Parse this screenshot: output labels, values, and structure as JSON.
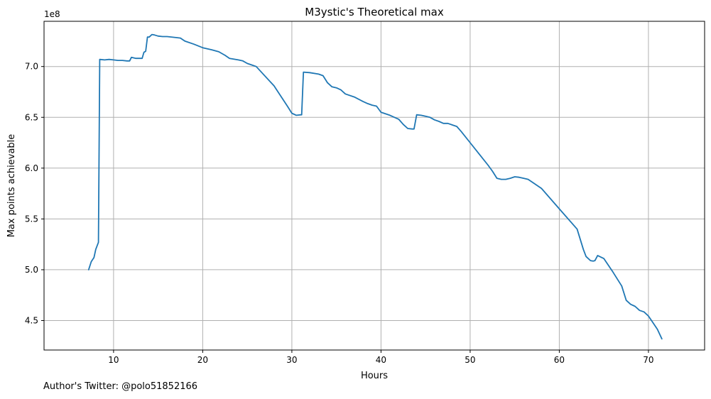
{
  "footer_text": "Author's Twitter: @polo51852166",
  "colors": {
    "line": "#1f77b4",
    "grid": "#b0b0b0",
    "axes": "#000000"
  },
  "chart_data": {
    "type": "line",
    "title": "M3ystic's Theoretical max",
    "xlabel": "Hours",
    "ylabel": "Max points achievable",
    "y_offset_label": "1e8",
    "grid": true,
    "xlim": [
      2.2,
      76.3
    ],
    "ylim": [
      421000000,
      744500000
    ],
    "x_ticks": [
      10,
      20,
      30,
      40,
      50,
      60,
      70
    ],
    "x_tick_labels": [
      "10",
      "20",
      "30",
      "40",
      "50",
      "60",
      "70"
    ],
    "y_ticks": [
      450000000,
      500000000,
      550000000,
      600000000,
      650000000,
      700000000
    ],
    "y_tick_labels": [
      "4.5",
      "5.0",
      "5.5",
      "6.0",
      "6.5",
      "7.0"
    ],
    "series": [
      {
        "x": [
          7.2,
          7.5,
          7.8,
          8.0,
          8.3,
          8.45,
          9.0,
          9.5,
          10.0,
          10.5,
          11.0,
          11.5,
          11.8,
          12.0,
          12.5,
          13.0,
          13.2,
          13.4,
          13.6,
          13.8,
          14.0,
          14.3,
          14.6,
          15.0,
          15.5,
          16.0,
          17.0,
          17.5,
          18.0,
          19.0,
          20.0,
          21.0,
          21.8,
          22.5,
          23.0,
          24.0,
          24.5,
          25.0,
          25.5,
          26.0,
          28.0,
          29.5,
          30.0,
          30.5,
          31.0,
          31.1,
          31.3,
          32.0,
          33.0,
          33.5,
          34.0,
          34.5,
          35.0,
          35.5,
          36.0,
          37.0,
          38.0,
          38.5,
          39.0,
          39.5,
          40.0,
          41.0,
          42.0,
          42.5,
          43.0,
          43.5,
          43.7,
          44.0,
          44.5,
          45.0,
          45.5,
          46.0,
          46.5,
          47.0,
          47.5,
          48.0,
          48.5,
          49.0,
          50.0,
          51.0,
          52.0,
          52.5,
          53.0,
          53.5,
          54.0,
          54.5,
          55.0,
          55.5,
          56.0,
          56.5,
          58.0,
          60.0,
          62.0,
          62.7,
          63.0,
          63.5,
          63.8,
          64.0,
          64.3,
          65.0,
          66.0,
          67.0,
          67.5,
          68.0,
          68.5,
          69.0,
          69.5,
          70.0,
          70.5,
          71.0,
          71.5
        ],
        "y": [
          500000000,
          508000000,
          512000000,
          520000000,
          527000000,
          707000000,
          706500000,
          707000000,
          706500000,
          706000000,
          706000000,
          705500000,
          705500000,
          709000000,
          708000000,
          708000000,
          708000000,
          714000000,
          715000000,
          729000000,
          729000000,
          731500000,
          731000000,
          730000000,
          729500000,
          729500000,
          728500000,
          728000000,
          725000000,
          722000000,
          718500000,
          716500000,
          714500000,
          711000000,
          708000000,
          706500000,
          705500000,
          703000000,
          701500000,
          700000000,
          681000000,
          661000000,
          654000000,
          652000000,
          652500000,
          652500000,
          694500000,
          694000000,
          692500000,
          691000000,
          684000000,
          680000000,
          679000000,
          677000000,
          673000000,
          670000000,
          665500000,
          663500000,
          662000000,
          661000000,
          655000000,
          652000000,
          648000000,
          643000000,
          639000000,
          638500000,
          638500000,
          652500000,
          652000000,
          651000000,
          650000000,
          647500000,
          646000000,
          644000000,
          644000000,
          642500000,
          641000000,
          636000000,
          625000000,
          614000000,
          603000000,
          597000000,
          590000000,
          589000000,
          589000000,
          590000000,
          591500000,
          591000000,
          590000000,
          589000000,
          580000000,
          560000000,
          540000000,
          520000000,
          513000000,
          509000000,
          508500000,
          509000000,
          514000000,
          511000000,
          498000000,
          484000000,
          470000000,
          466000000,
          464000000,
          460000000,
          458500000,
          454500000,
          448000000,
          441500000,
          432000000
        ]
      }
    ]
  }
}
